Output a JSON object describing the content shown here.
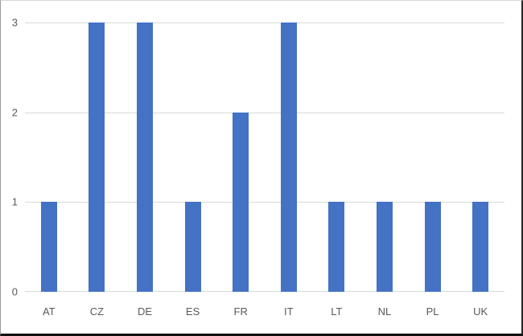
{
  "chart_data": {
    "type": "bar",
    "categories": [
      "AT",
      "CZ",
      "DE",
      "ES",
      "FR",
      "IT",
      "LT",
      "NL",
      "PL",
      "UK"
    ],
    "values": [
      1,
      3,
      3,
      1,
      2,
      3,
      1,
      1,
      1,
      1
    ],
    "title": "",
    "xlabel": "",
    "ylabel": "",
    "ylim": [
      0,
      3
    ],
    "yticks": [
      "0",
      "1",
      "2",
      "3"
    ],
    "grid": true,
    "legend": "none",
    "bar_color": "#4472C4",
    "gridline_color": "#D9D9D9",
    "axis_line_color": "#D9D9D9",
    "tick_label_color": "#595959"
  }
}
